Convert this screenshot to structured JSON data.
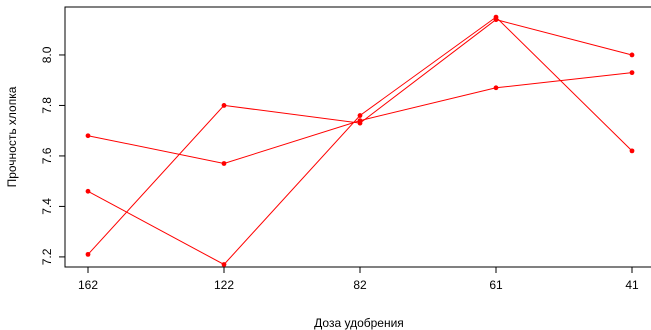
{
  "chart_data": {
    "type": "line",
    "xlabel": "Доза удобрения",
    "ylabel": "Прочность хлопка",
    "categories": [
      "162",
      "122",
      "82",
      "61",
      "41"
    ],
    "yticks": [
      "7.2",
      "7.4",
      "7.6",
      "7.8",
      "8.0"
    ],
    "ylim": [
      7.16,
      8.19
    ],
    "grid": false,
    "color": "#ff0000",
    "series": [
      {
        "values": [
          7.68,
          7.57,
          7.74,
          7.87,
          7.93
        ]
      },
      {
        "values": [
          7.46,
          7.17,
          7.76,
          8.15,
          7.62
        ]
      },
      {
        "values": [
          7.21,
          7.8,
          7.73,
          8.14,
          8.0
        ]
      }
    ]
  }
}
